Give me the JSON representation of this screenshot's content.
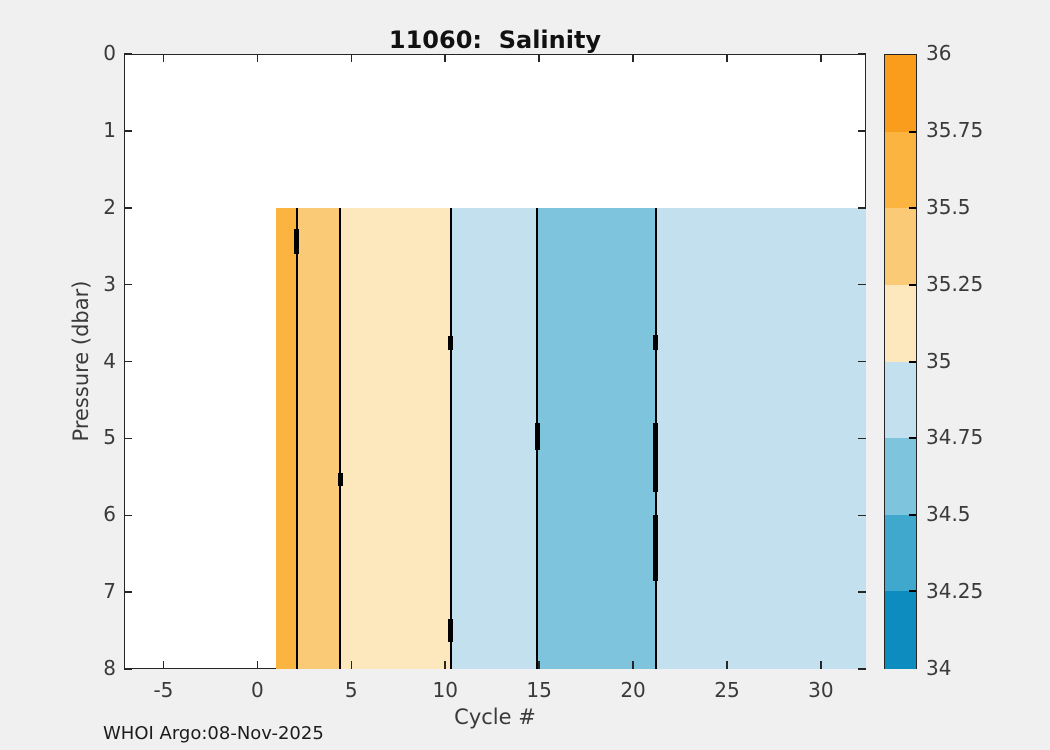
{
  "figure": {
    "background_color": "#f0f0f0",
    "plot_background_color": "#ffffff",
    "axis_color": "#262626",
    "text_color": "#3a3a3a",
    "footer": "WHOI Argo:08-Nov-2025"
  },
  "chart_data": {
    "type": "heatmap",
    "subtype": "filled_contour_bands",
    "title": "11060:  Salinity",
    "xlabel": "Cycle #",
    "ylabel": "Pressure (dbar)",
    "xlim": [
      -7.1,
      32.4
    ],
    "ylim_top_to_bottom": [
      0,
      8
    ],
    "xticks": [
      "-5",
      "0",
      "5",
      "10",
      "15",
      "20",
      "25",
      "30"
    ],
    "xtick_values": [
      -5,
      0,
      5,
      10,
      15,
      20,
      25,
      30
    ],
    "yticks": [
      "0",
      "1",
      "2",
      "3",
      "4",
      "5",
      "6",
      "7",
      "8"
    ],
    "ytick_values": [
      0,
      1,
      2,
      3,
      4,
      5,
      6,
      7,
      8
    ],
    "grid": false,
    "fill_pressure_range": [
      2,
      8
    ],
    "bands": [
      {
        "cycle_start": 1.0,
        "cycle_end": 2.1,
        "salinity_min": 35.5,
        "salinity_max": 35.75,
        "color": "#fbb440"
      },
      {
        "cycle_start": 2.1,
        "cycle_end": 4.4,
        "salinity_min": 35.25,
        "salinity_max": 35.5,
        "color": "#fbca77"
      },
      {
        "cycle_start": 4.4,
        "cycle_end": 10.3,
        "salinity_min": 35.0,
        "salinity_max": 35.25,
        "color": "#fde7bc"
      },
      {
        "cycle_start": 10.3,
        "cycle_end": 14.9,
        "salinity_min": 34.75,
        "salinity_max": 35.0,
        "color": "#c2e0ee"
      },
      {
        "cycle_start": 14.9,
        "cycle_end": 21.2,
        "salinity_min": 34.5,
        "salinity_max": 34.75,
        "color": "#7ec4dd"
      },
      {
        "cycle_start": 21.2,
        "cycle_end": 32.4,
        "salinity_min": 34.75,
        "salinity_max": 35.0,
        "color": "#c2e0ee"
      }
    ],
    "contour_line_color": "#000000",
    "contour_lines": [
      {
        "cycle": 2.1,
        "marks": [
          [
            2.27,
            2.6
          ]
        ]
      },
      {
        "cycle": 4.4,
        "marks": [
          [
            5.45,
            5.62
          ]
        ]
      },
      {
        "cycle": 10.3,
        "marks": [
          [
            3.67,
            3.85
          ],
          [
            7.35,
            7.65
          ]
        ]
      },
      {
        "cycle": 14.9,
        "marks": [
          [
            4.8,
            5.15
          ]
        ]
      },
      {
        "cycle": 21.2,
        "marks": [
          [
            3.65,
            3.85
          ],
          [
            4.8,
            5.7
          ],
          [
            6.0,
            6.85
          ]
        ]
      }
    ],
    "colorbar": {
      "position": "right",
      "tick_labels": [
        "36",
        "35.75",
        "35.5",
        "35.25",
        "35",
        "34.75",
        "34.5",
        "34.25",
        "34"
      ],
      "tick_values": [
        36,
        35.75,
        35.5,
        35.25,
        35,
        34.75,
        34.5,
        34.25,
        34
      ],
      "band_colors_top_to_bottom": [
        "#fa9d1c",
        "#fbb440",
        "#fbca77",
        "#fde7bc",
        "#c2e0ee",
        "#7ec4dd",
        "#41a8cd",
        "#0d8dbf"
      ]
    }
  }
}
